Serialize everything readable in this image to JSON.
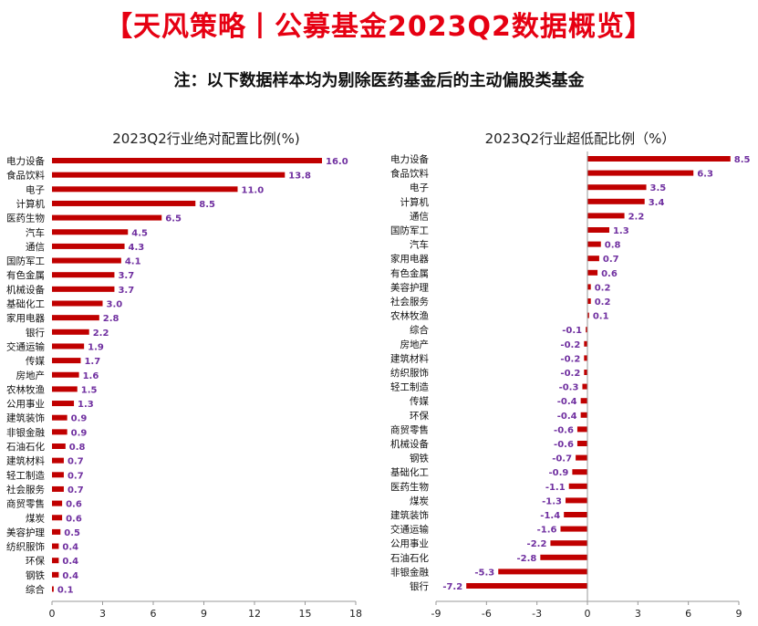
{
  "title": "【天风策略丨公募基金2023Q2数据概览】",
  "subtitle": "注：以下数据样本均为剔除医药基金后的主动偏股类基金",
  "colors": {
    "title": "#e60012",
    "bar": "#c00000",
    "value_label": "#7030a0",
    "axis": "#999999"
  },
  "chart_data": [
    {
      "type": "bar",
      "orientation": "horizontal",
      "title": "2023Q2行业绝对配置比例(%)",
      "categories": [
        "电力设备",
        "食品饮料",
        "电子",
        "计算机",
        "医药生物",
        "汽车",
        "通信",
        "国防军工",
        "有色金属",
        "机械设备",
        "基础化工",
        "家用电器",
        "银行",
        "交通运输",
        "传媒",
        "房地产",
        "农林牧渔",
        "公用事业",
        "建筑装饰",
        "非银金融",
        "石油石化",
        "建筑材料",
        "轻工制造",
        "社会服务",
        "商贸零售",
        "煤炭",
        "美容护理",
        "纺织服饰",
        "环保",
        "钢铁",
        "综合"
      ],
      "values": [
        16.0,
        13.8,
        11.0,
        8.5,
        6.5,
        4.5,
        4.3,
        4.1,
        3.7,
        3.7,
        3.0,
        2.8,
        2.2,
        1.9,
        1.7,
        1.6,
        1.5,
        1.3,
        0.9,
        0.9,
        0.8,
        0.7,
        0.7,
        0.7,
        0.6,
        0.6,
        0.5,
        0.4,
        0.4,
        0.4,
        0.1
      ],
      "value_labels": [
        "16.0",
        "13.8",
        "11.0",
        "8.5",
        "6.5",
        "4.5",
        "4.3",
        "4.1",
        "3.7",
        "3.7",
        "3.0",
        "2.8",
        "2.2",
        "1.9",
        "1.7",
        "1.6",
        "1.5",
        "1.3",
        "0.9",
        "0.9",
        "0.8",
        "0.7",
        "0.7",
        "0.7",
        "0.6",
        "0.6",
        "0.5",
        "0.4",
        "0.4",
        "0.4",
        "0.1"
      ],
      "xlim": [
        0,
        18
      ],
      "ticks": [
        0,
        3,
        6,
        9,
        12,
        15,
        18
      ],
      "tick_labels": [
        "0",
        "3",
        "6",
        "9",
        "12",
        "15",
        "18"
      ],
      "grid": false,
      "legend": "none"
    },
    {
      "type": "bar",
      "orientation": "horizontal",
      "title": "2023Q2行业超低配比例（%）",
      "categories": [
        "电力设备",
        "食品饮料",
        "电子",
        "计算机",
        "通信",
        "国防军工",
        "汽车",
        "家用电器",
        "有色金属",
        "美容护理",
        "社会服务",
        "农林牧渔",
        "综合",
        "房地产",
        "建筑材料",
        "纺织服饰",
        "轻工制造",
        "传媒",
        "环保",
        "商贸零售",
        "机械设备",
        "钢铁",
        "基础化工",
        "医药生物",
        "煤炭",
        "建筑装饰",
        "交通运输",
        "公用事业",
        "石油石化",
        "非银金融",
        "银行"
      ],
      "values": [
        8.5,
        6.3,
        3.5,
        3.4,
        2.2,
        1.3,
        0.8,
        0.7,
        0.6,
        0.2,
        0.2,
        0.1,
        -0.1,
        -0.2,
        -0.2,
        -0.2,
        -0.3,
        -0.4,
        -0.4,
        -0.6,
        -0.6,
        -0.7,
        -0.9,
        -1.1,
        -1.3,
        -1.4,
        -1.6,
        -2.2,
        -2.8,
        -5.3,
        -7.2
      ],
      "value_labels": [
        "8.5",
        "6.3",
        "3.5",
        "3.4",
        "2.2",
        "1.3",
        "0.8",
        "0.7",
        "0.6",
        "0.2",
        "0.2",
        "0.1",
        "-0.1",
        "-0.2",
        "-0.2",
        "-0.2",
        "-0.3",
        "-0.4",
        "-0.4",
        "-0.6",
        "-0.6",
        "-0.7",
        "-0.9",
        "-1.1",
        "-1.3",
        "-1.4",
        "-1.6",
        "-2.2",
        "-2.8",
        "-5.3",
        "-7.2"
      ],
      "xlim": [
        -9,
        9
      ],
      "ticks": [
        -9,
        -6,
        -3,
        0,
        3,
        6,
        9
      ],
      "tick_labels": [
        "-9",
        "-6",
        "-3",
        "0",
        "3",
        "6",
        "9"
      ],
      "grid": false,
      "legend": "none"
    }
  ]
}
